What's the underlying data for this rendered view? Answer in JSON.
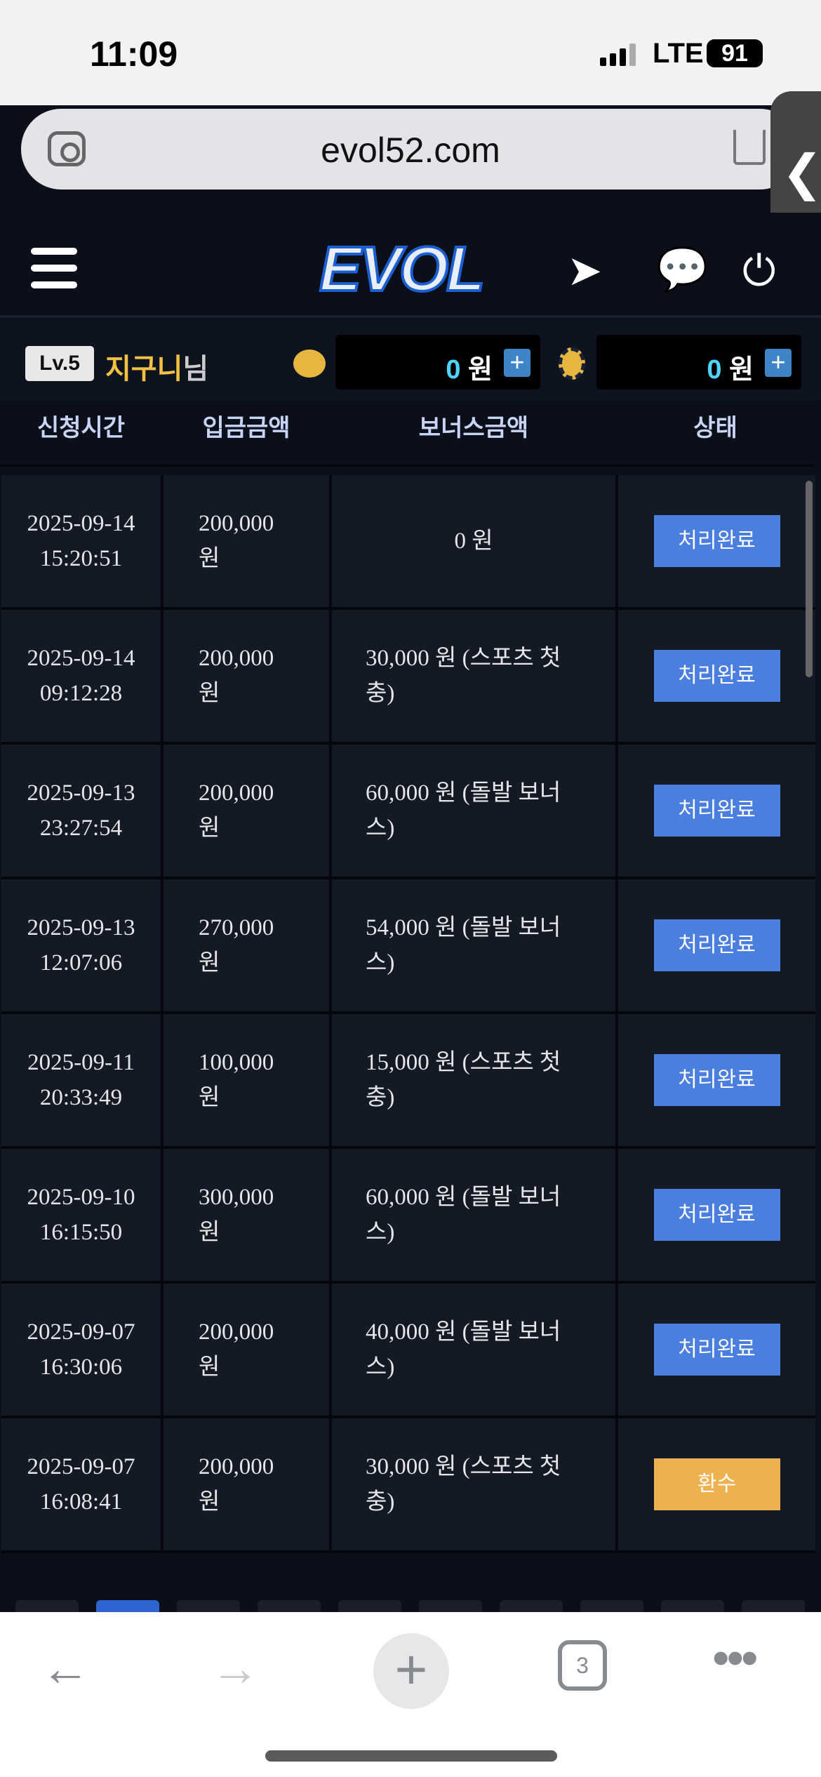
{
  "status_bar": {
    "time": "11:09",
    "network": "LTE",
    "battery": "91"
  },
  "browser": {
    "url": "evol52.com",
    "tab_count": "3",
    "side_tab": "❮"
  },
  "header": {
    "logo": "EVOL",
    "icons": [
      "menu-icon",
      "telegram-icon",
      "chat-icon",
      "power-icon"
    ]
  },
  "user": {
    "level": "Lv.5",
    "name": "지구니",
    "suffix": "님",
    "balance_amount": "0",
    "balance_unit": "원",
    "point_amount": "0",
    "point_unit": "원",
    "plus": "+"
  },
  "table": {
    "headers": [
      "신청시간",
      "입금금액",
      "보너스금액",
      "상태"
    ],
    "rows": [
      {
        "date": "2025-09-14",
        "time": "15:20:51",
        "amount": "200,000",
        "unit": "원",
        "bonus": "0 원",
        "status": "처리완료"
      },
      {
        "date": "2025-09-14",
        "time": "09:12:28",
        "amount": "200,000",
        "unit": "원",
        "bonus": "30,000 원 (스포츠 첫충)",
        "status": "처리완료"
      },
      {
        "date": "2025-09-13",
        "time": "23:27:54",
        "amount": "200,000",
        "unit": "원",
        "bonus": "60,000 원 (돌발 보너스)",
        "status": "처리완료"
      },
      {
        "date": "2025-09-13",
        "time": "12:07:06",
        "amount": "270,000",
        "unit": "원",
        "bonus": "54,000 원 (돌발 보너스)",
        "status": "처리완료"
      },
      {
        "date": "2025-09-11",
        "time": "20:33:49",
        "amount": "100,000",
        "unit": "원",
        "bonus": "15,000 원 (스포츠 첫충)",
        "status": "처리완료"
      },
      {
        "date": "2025-09-10",
        "time": "16:15:50",
        "amount": "300,000",
        "unit": "원",
        "bonus": "60,000 원 (돌발 보너스)",
        "status": "처리완료"
      },
      {
        "date": "2025-09-07",
        "time": "16:30:06",
        "amount": "200,000",
        "unit": "원",
        "bonus": "40,000 원 (돌발 보너스)",
        "status": "처리완료"
      },
      {
        "date": "2025-09-07",
        "time": "16:08:41",
        "amount": "200,000",
        "unit": "원",
        "bonus": "30,000 원 (스포츠 첫충)",
        "status": "환수"
      }
    ]
  },
  "colors": {
    "completed": "#4a7fe0",
    "refund": "#eeb14f",
    "accent_page": "#2d64d0"
  },
  "pagination": {
    "active_index": 1
  }
}
